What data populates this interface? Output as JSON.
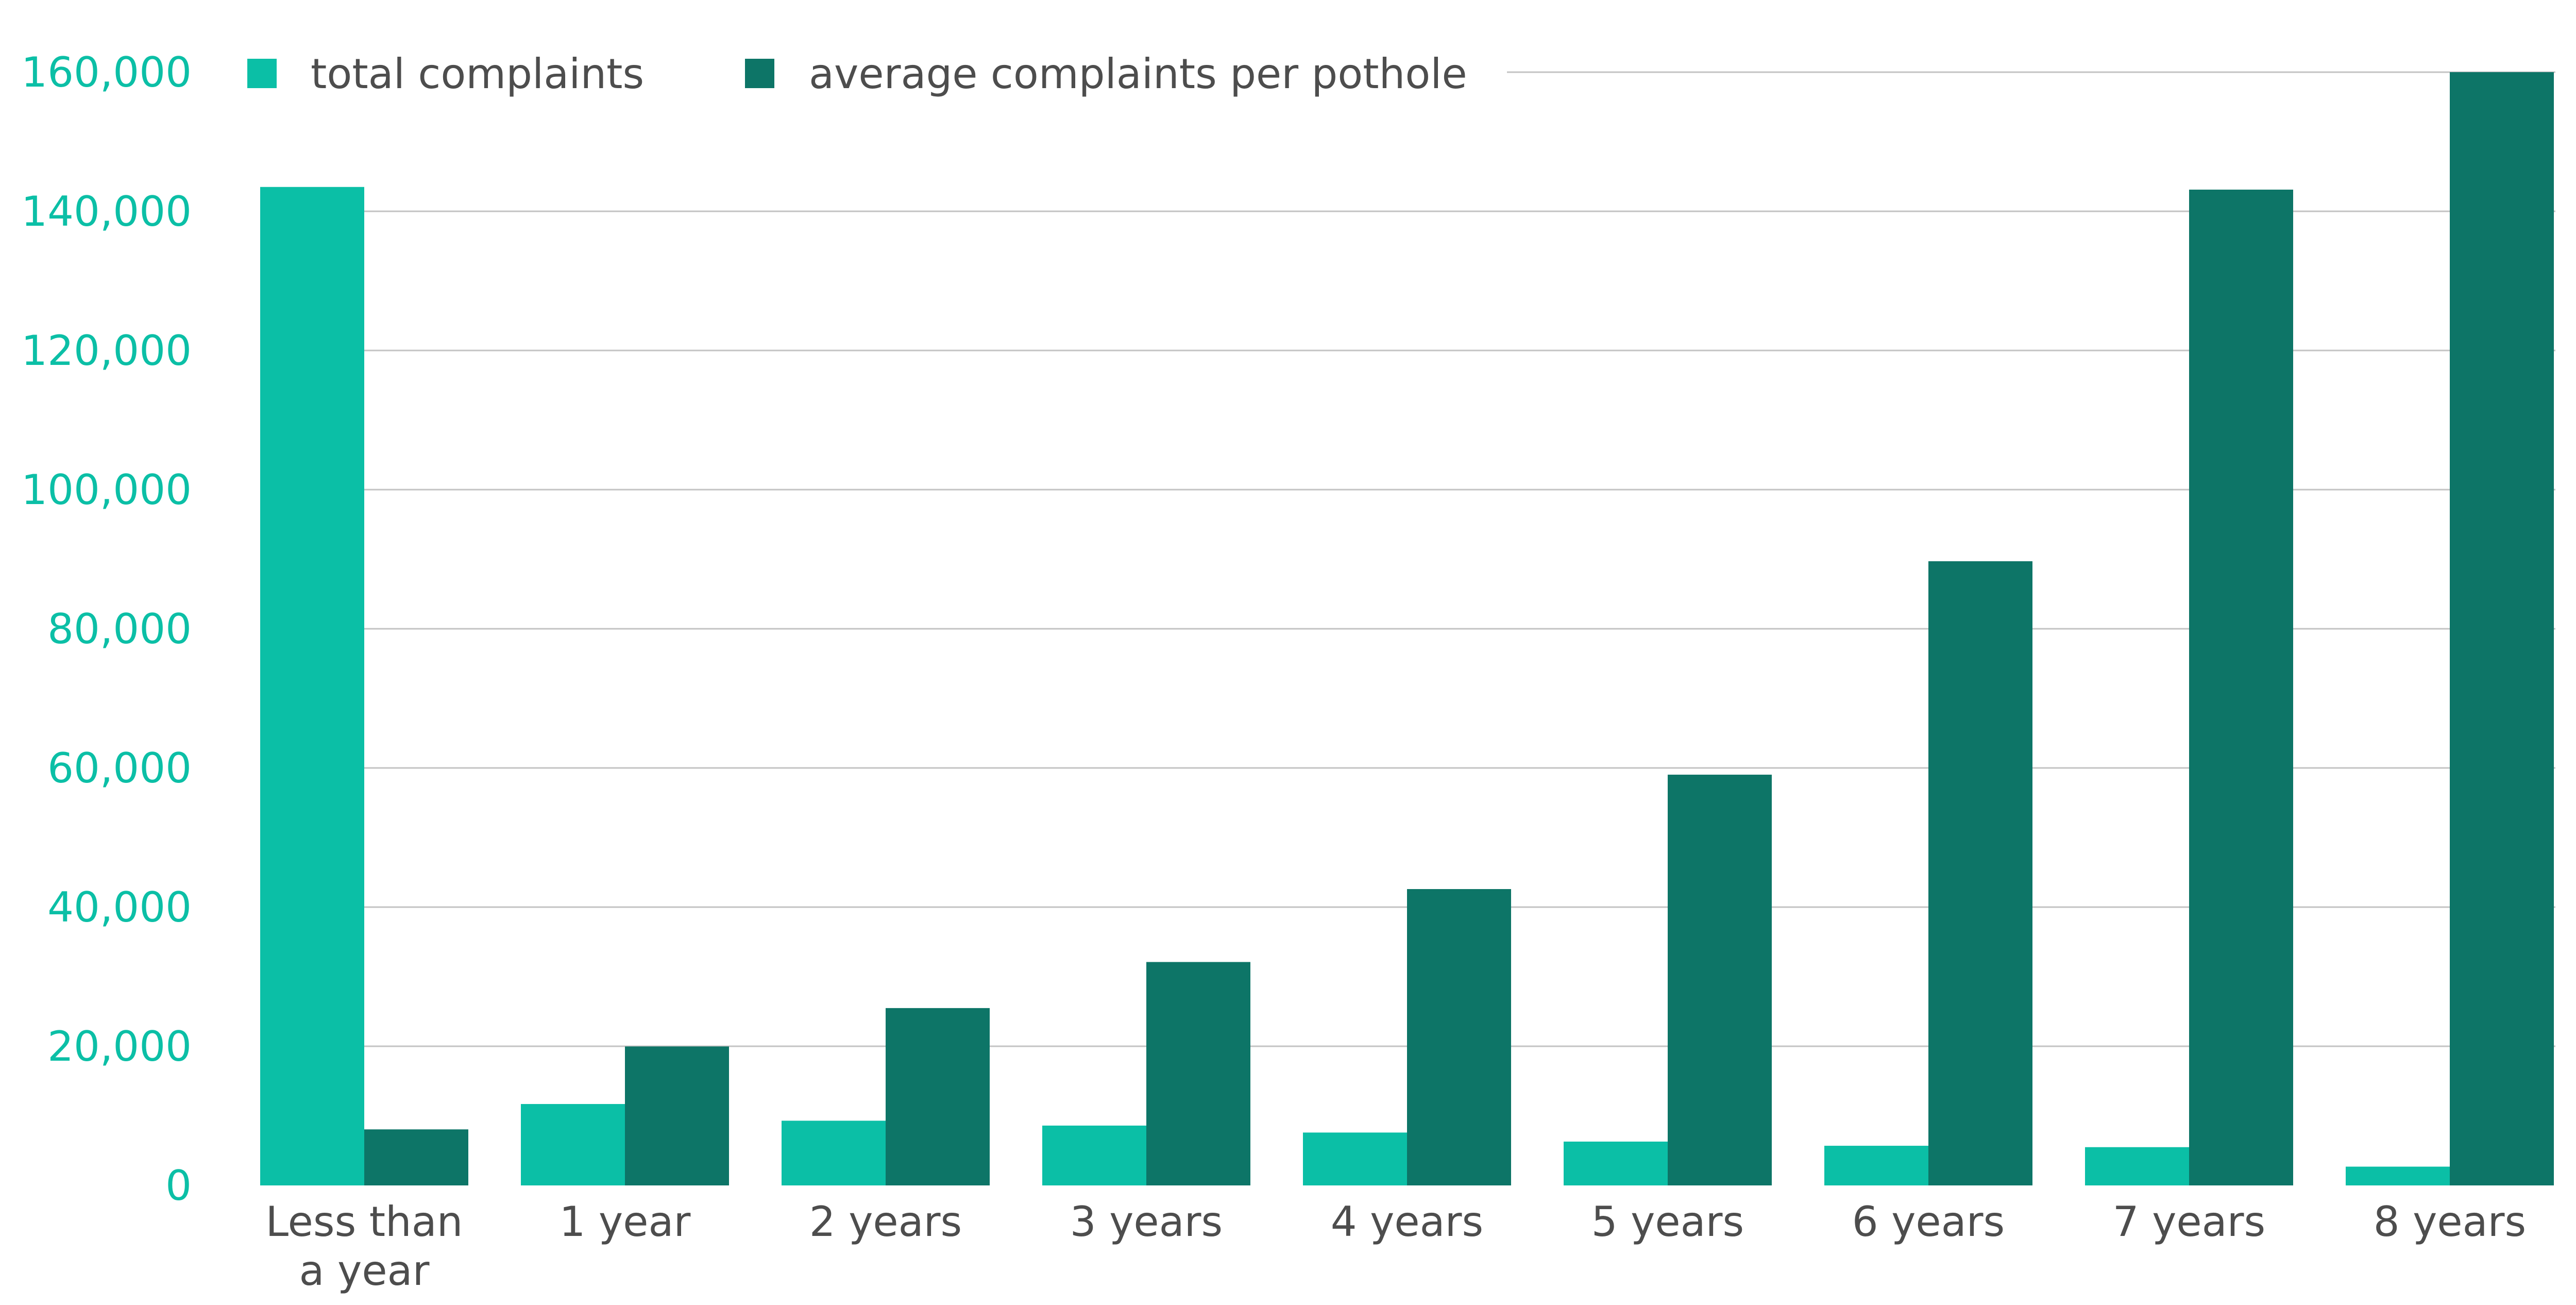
{
  "chart_data": {
    "type": "bar",
    "title": "",
    "xlabel": "",
    "ylabel": "",
    "ylabel_right": "",
    "categories": [
      [
        "Less than",
        "a year"
      ],
      [
        "1 year"
      ],
      [
        "2 years"
      ],
      [
        "3 years"
      ],
      [
        "4 years"
      ],
      [
        "5 years"
      ],
      [
        "6 years"
      ],
      [
        "7 years"
      ],
      [
        "8 years"
      ]
    ],
    "series": [
      {
        "name": "total complaints",
        "axis": "left",
        "color": "#0bbfa6",
        "values": [
          143500,
          11700,
          9300,
          8600,
          7600,
          6300,
          5700,
          5500,
          2700
        ]
      },
      {
        "name": "average complaints per pothole",
        "axis": "right",
        "color": "#0d7567",
        "values": [
          0.73,
          1.81,
          2.31,
          2.91,
          3.86,
          5.35,
          8.13,
          12.97,
          14.5
        ]
      }
    ],
    "ylim_left": [
      0,
      160000
    ],
    "ylim_right": [
      0,
      14.5
    ],
    "yticks_left": [
      "0",
      "20,000",
      "40,000",
      "60,000",
      "80,000",
      "100,000",
      "120,000",
      "140,000",
      "160,000"
    ],
    "yticks_left_values": [
      0,
      20000,
      40000,
      60000,
      80000,
      100000,
      120000,
      140000,
      160000
    ],
    "yticks_right": [
      "0",
      "2",
      "4",
      "6",
      "8",
      "10",
      "12",
      "14"
    ],
    "yticks_right_values": [
      0,
      2,
      4,
      6,
      8,
      10,
      12,
      14
    ],
    "grid": true,
    "legend_position": "top-left",
    "colors": {
      "left_axis": "#0bbfa6",
      "right_axis": "#0d7567",
      "text": "#4d4d4d",
      "grid": "#c3c3c3"
    }
  }
}
